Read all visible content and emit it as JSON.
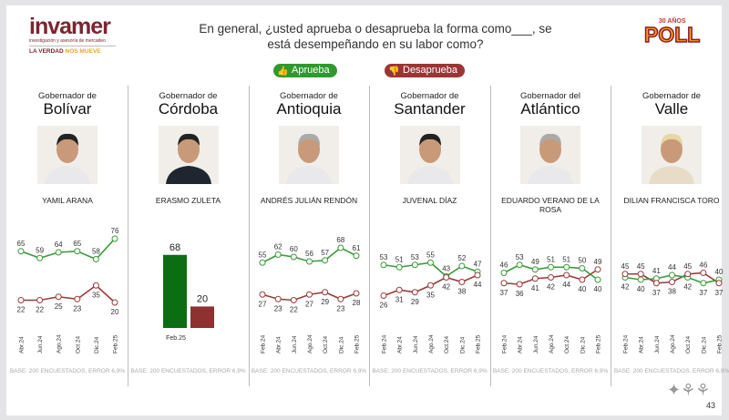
{
  "logo": {
    "name": "invamer",
    "subtitle": "investigación y asesoría de mercadeo",
    "tagline_a": "LA VERDAD",
    "tagline_b": "NOS MUEVE"
  },
  "question": "En general, ¿usted aprueba o desaprueba la forma como___, se está desempeñando en su labor como?",
  "poll_logo": {
    "years": "30 AÑOS",
    "text": "POLL"
  },
  "legend": {
    "approve": "Aprueba",
    "disapprove": "Desaprueba",
    "approve_color": "#2e9a2e",
    "disapprove_color": "#9b3535",
    "approve_icon": "thumbs-up-icon",
    "disapprove_icon": "thumbs-down-icon"
  },
  "panels": [
    {
      "title": "Gobernador de",
      "region": "Bolívar",
      "person": "YAMIL ARANA"
    },
    {
      "title": "Gobernador de",
      "region": "Córdoba",
      "person": "ERASMO ZULETA"
    },
    {
      "title": "Gobernador de",
      "region": "Antioquia",
      "person": "ANDRÉS JULIÁN RENDÓN"
    },
    {
      "title": "Gobernador de",
      "region": "Santander",
      "person": "JUVENAL DÍAZ"
    },
    {
      "title": "Gobernador del",
      "region": "Atlántico",
      "person": "EDUARDO VERANO DE LA ROSA"
    },
    {
      "title": "Gobernador de",
      "region": "Valle",
      "person": "DILIAN FRANCISCA TORO"
    }
  ],
  "base_note": "BASE: 200 ENCUESTADOS, ERROR 6,9%",
  "page_number": "43",
  "chart_data": [
    {
      "type": "line",
      "categories": [
        "Abr.24",
        "Jun.24",
        "Ago.24",
        "Oct.24",
        "Dic.24",
        "Feb.25"
      ],
      "series": [
        {
          "name": "Aprueba",
          "values": [
            65,
            59,
            64,
            65,
            58,
            76
          ]
        },
        {
          "name": "Desaprueba",
          "values": [
            22,
            22,
            25,
            23,
            35,
            20
          ]
        }
      ]
    },
    {
      "type": "bar",
      "categories": [
        "Feb.25"
      ],
      "series": [
        {
          "name": "Aprueba",
          "values": [
            68
          ]
        },
        {
          "name": "Desaprueba",
          "values": [
            20
          ]
        }
      ]
    },
    {
      "type": "line",
      "categories": [
        "Feb.24",
        "Abr.24",
        "Jun.24",
        "Ago.24",
        "Oct.24",
        "Dic.24",
        "Feb.25"
      ],
      "series": [
        {
          "name": "Aprueba",
          "values": [
            55,
            62,
            60,
            56,
            57,
            68,
            61
          ]
        },
        {
          "name": "Desaprueba",
          "values": [
            27,
            23,
            22,
            27,
            29,
            23,
            28
          ]
        }
      ]
    },
    {
      "type": "line",
      "categories": [
        "Feb.24",
        "Abr.24",
        "Jun.24",
        "Ago.24",
        "Oct.24",
        "Dic.24",
        "Feb.25"
      ],
      "series": [
        {
          "name": "Aprueba",
          "values": [
            53,
            51,
            53,
            55,
            43,
            52,
            47
          ]
        },
        {
          "name": "Desaprueba",
          "values": [
            26,
            31,
            29,
            35,
            42,
            38,
            44
          ]
        }
      ]
    },
    {
      "type": "line",
      "categories": [
        "Feb.24",
        "Abr.24",
        "Jun.24",
        "Ago.24",
        "Oct.24",
        "Dic.24",
        "Feb.25"
      ],
      "series": [
        {
          "name": "Aprueba",
          "values": [
            46,
            53,
            49,
            51,
            51,
            50,
            40
          ]
        },
        {
          "name": "Desaprueba",
          "values": [
            37,
            36,
            41,
            42,
            44,
            40,
            49
          ]
        }
      ]
    },
    {
      "type": "line",
      "categories": [
        "Feb.24",
        "Abr.24",
        "Jun.24",
        "Ago.24",
        "Oct.24",
        "Dic.24",
        "Feb.25"
      ],
      "series": [
        {
          "name": "Aprueba",
          "values": [
            42,
            40,
            41,
            44,
            42,
            37,
            40
          ]
        },
        {
          "name": "Desaprueba",
          "values": [
            45,
            45,
            37,
            38,
            45,
            46,
            37
          ]
        }
      ]
    }
  ]
}
